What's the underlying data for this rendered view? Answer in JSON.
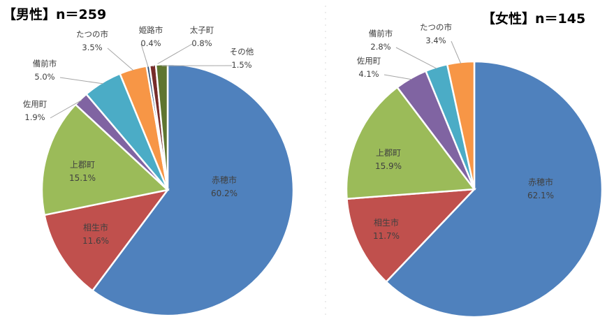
{
  "colors": {
    "赤穂市": "#4f81bd",
    "相生市": "#c0504d",
    "上郡町": "#9bbb59",
    "佐用町": "#8064a2",
    "備前市": "#4bacc6",
    "たつの市": "#f79646",
    "姫路市": "#2c4d75",
    "太子町": "#772c2a",
    "その他": "#5f7530"
  },
  "chart_data": [
    {
      "type": "pie",
      "title": "【男性】n＝259",
      "slices": [
        {
          "label": "赤穂市",
          "value": 60.2,
          "pct": "60.2%"
        },
        {
          "label": "相生市",
          "value": 11.6,
          "pct": "11.6%"
        },
        {
          "label": "上郡町",
          "value": 15.1,
          "pct": "15.1%"
        },
        {
          "label": "佐用町",
          "value": 1.9,
          "pct": "1.9%"
        },
        {
          "label": "備前市",
          "value": 5.0,
          "pct": "5.0%"
        },
        {
          "label": "たつの市",
          "value": 3.5,
          "pct": "3.5%"
        },
        {
          "label": "姫路市",
          "value": 0.4,
          "pct": "0.4%"
        },
        {
          "label": "太子町",
          "value": 0.8,
          "pct": "0.8%"
        },
        {
          "label": "その他",
          "value": 1.5,
          "pct": "1.5%"
        }
      ]
    },
    {
      "type": "pie",
      "title": "【女性】n＝145",
      "slices": [
        {
          "label": "赤穂市",
          "value": 62.1,
          "pct": "62.1%"
        },
        {
          "label": "相生市",
          "value": 11.7,
          "pct": "11.7%"
        },
        {
          "label": "上郡町",
          "value": 15.9,
          "pct": "15.9%"
        },
        {
          "label": "佐用町",
          "value": 4.1,
          "pct": "4.1%"
        },
        {
          "label": "備前市",
          "value": 2.8,
          "pct": "2.8%"
        },
        {
          "label": "たつの市",
          "value": 3.4,
          "pct": "3.4%"
        }
      ]
    }
  ]
}
